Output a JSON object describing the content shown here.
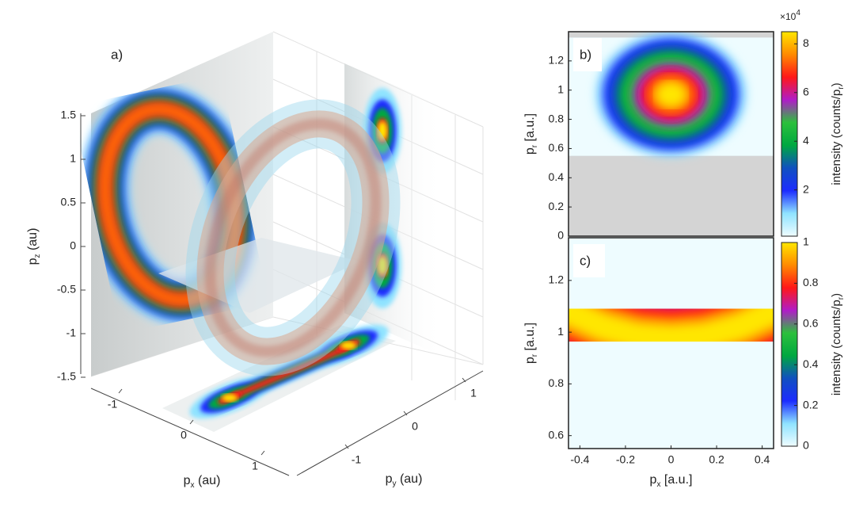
{
  "chart_data": [
    {
      "type": "volume3d",
      "panel_label": "a)",
      "xlabel": [
        "p",
        "x",
        " (au)"
      ],
      "ylabel": [
        "p",
        "y",
        " (au)"
      ],
      "zlabel": [
        "p",
        "z",
        " (au)"
      ],
      "xticks": [
        -1,
        0,
        1
      ],
      "yticks": [
        -1,
        0,
        1
      ],
      "zticks": [
        -1.5,
        -1,
        -0.5,
        0,
        0.5,
        1,
        1.5
      ],
      "zlim": [
        -1.5,
        1.5
      ],
      "colormap": [
        "#eefcff",
        "#8fe3ff",
        "#1c2cff",
        "#1050c0",
        "#00a840",
        "#2cc03c",
        "#b01cc8",
        "#ff1818",
        "#ff8a00",
        "#ffe600"
      ]
    },
    {
      "type": "heatmap",
      "panel_label": "b)",
      "ylabel": [
        "p",
        "r",
        " [a.u.]"
      ],
      "colorbar_label": [
        "intensity (counts/p",
        "r",
        ")"
      ],
      "colorbar_multiplier": [
        "×10",
        "4"
      ],
      "xlim": [
        -0.45,
        0.45
      ],
      "ylim": [
        0,
        1.4
      ],
      "yticks": [
        0,
        0.2,
        0.4,
        0.6,
        0.8,
        1,
        1.2
      ],
      "image_ylim": [
        0.55,
        1.36
      ],
      "x": [
        0
      ],
      "values": [
        0.97
      ],
      "z": [
        84000
      ],
      "clim": [
        1000,
        85000
      ],
      "cticks": [
        {
          "value": 20000,
          "label": "2"
        },
        {
          "value": 40000,
          "label": "4"
        },
        {
          "value": 60000,
          "label": "6"
        },
        {
          "value": 80000,
          "label": "8"
        }
      ],
      "colormap": [
        "#eefcff",
        "#8fe3ff",
        "#1c2cff",
        "#1050c0",
        "#00a840",
        "#2cc03c",
        "#b01cc8",
        "#ff1818",
        "#ff8a00",
        "#ffe600"
      ]
    },
    {
      "type": "band",
      "panel_label": "c)",
      "xlabel": [
        "p",
        "x",
        " [a.u.]"
      ],
      "ylabel": [
        "p",
        "r",
        " [a.u.]"
      ],
      "colorbar_label": [
        "intensity (counts/p",
        "r",
        ")"
      ],
      "xlim": [
        -0.45,
        0.45
      ],
      "ylim": [
        0.55,
        1.365
      ],
      "xticks": [
        -0.4,
        -0.2,
        0,
        0.2,
        0.4
      ],
      "yticks": [
        0.6,
        0.8,
        1,
        1.2
      ],
      "x": [
        -0.45,
        -0.3,
        -0.15,
        0,
        0.15,
        0.3,
        0.45
      ],
      "values": [
        1.08,
        1.02,
        0.985,
        0.975,
        0.985,
        1.02,
        1.08
      ],
      "clim": [
        0,
        1
      ],
      "cticks": [
        0,
        0.2,
        0.4,
        0.6,
        0.8,
        1
      ],
      "colormap": [
        "#eefcff",
        "#8fe3ff",
        "#1c2cff",
        "#1050c0",
        "#00a840",
        "#2cc03c",
        "#b01cc8",
        "#ff1818",
        "#ff8a00",
        "#ffe600"
      ]
    }
  ]
}
